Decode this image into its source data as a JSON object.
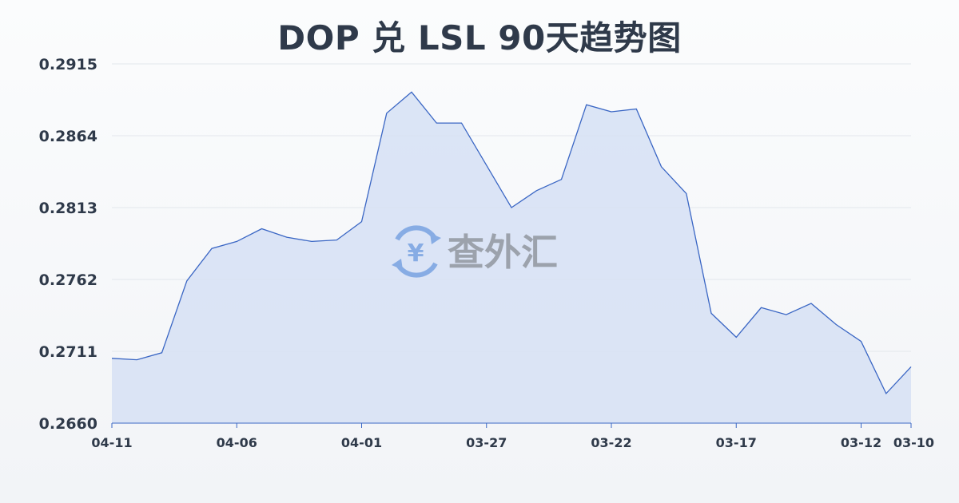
{
  "chart_data": {
    "type": "area",
    "title": "DOP 兑 LSL 90天趋势图",
    "xlabel": "",
    "ylabel": "",
    "y_ticks": [
      "0.2915",
      "0.2864",
      "0.2813",
      "0.2762",
      "0.2711",
      "0.2660"
    ],
    "ylim": [
      0.266,
      0.2915
    ],
    "x_tick_labels": [
      "04-11",
      "04-06",
      "04-01",
      "03-27",
      "03-22",
      "03-17",
      "03-12",
      "03-10"
    ],
    "x": [
      "04-11",
      "04-10",
      "04-09",
      "04-08",
      "04-07",
      "04-06",
      "04-05",
      "04-04",
      "04-03",
      "04-02",
      "04-01",
      "03-31",
      "03-30",
      "03-29",
      "03-28",
      "03-27",
      "03-26",
      "03-25",
      "03-24",
      "03-23",
      "03-22",
      "03-21",
      "03-20",
      "03-19",
      "03-18",
      "03-17",
      "03-16",
      "03-15",
      "03-14",
      "03-13",
      "03-12",
      "03-11",
      "03-10"
    ],
    "values": [
      0.2706,
      0.2705,
      0.271,
      0.2761,
      0.2784,
      0.2789,
      0.2798,
      0.2792,
      0.2789,
      0.279,
      0.2803,
      0.288,
      0.2895,
      0.2873,
      0.2873,
      0.2843,
      0.2813,
      0.2825,
      0.2833,
      0.2886,
      0.2881,
      0.2883,
      0.2842,
      0.2823,
      0.2738,
      0.2721,
      0.2742,
      0.2737,
      0.2745,
      0.273,
      0.2718,
      0.2681,
      0.27
    ],
    "grid": true,
    "line_color": "#3a66c4",
    "fill_color": "#d6e1f5",
    "watermark_text": "查外汇",
    "watermark_symbol": "¥"
  }
}
